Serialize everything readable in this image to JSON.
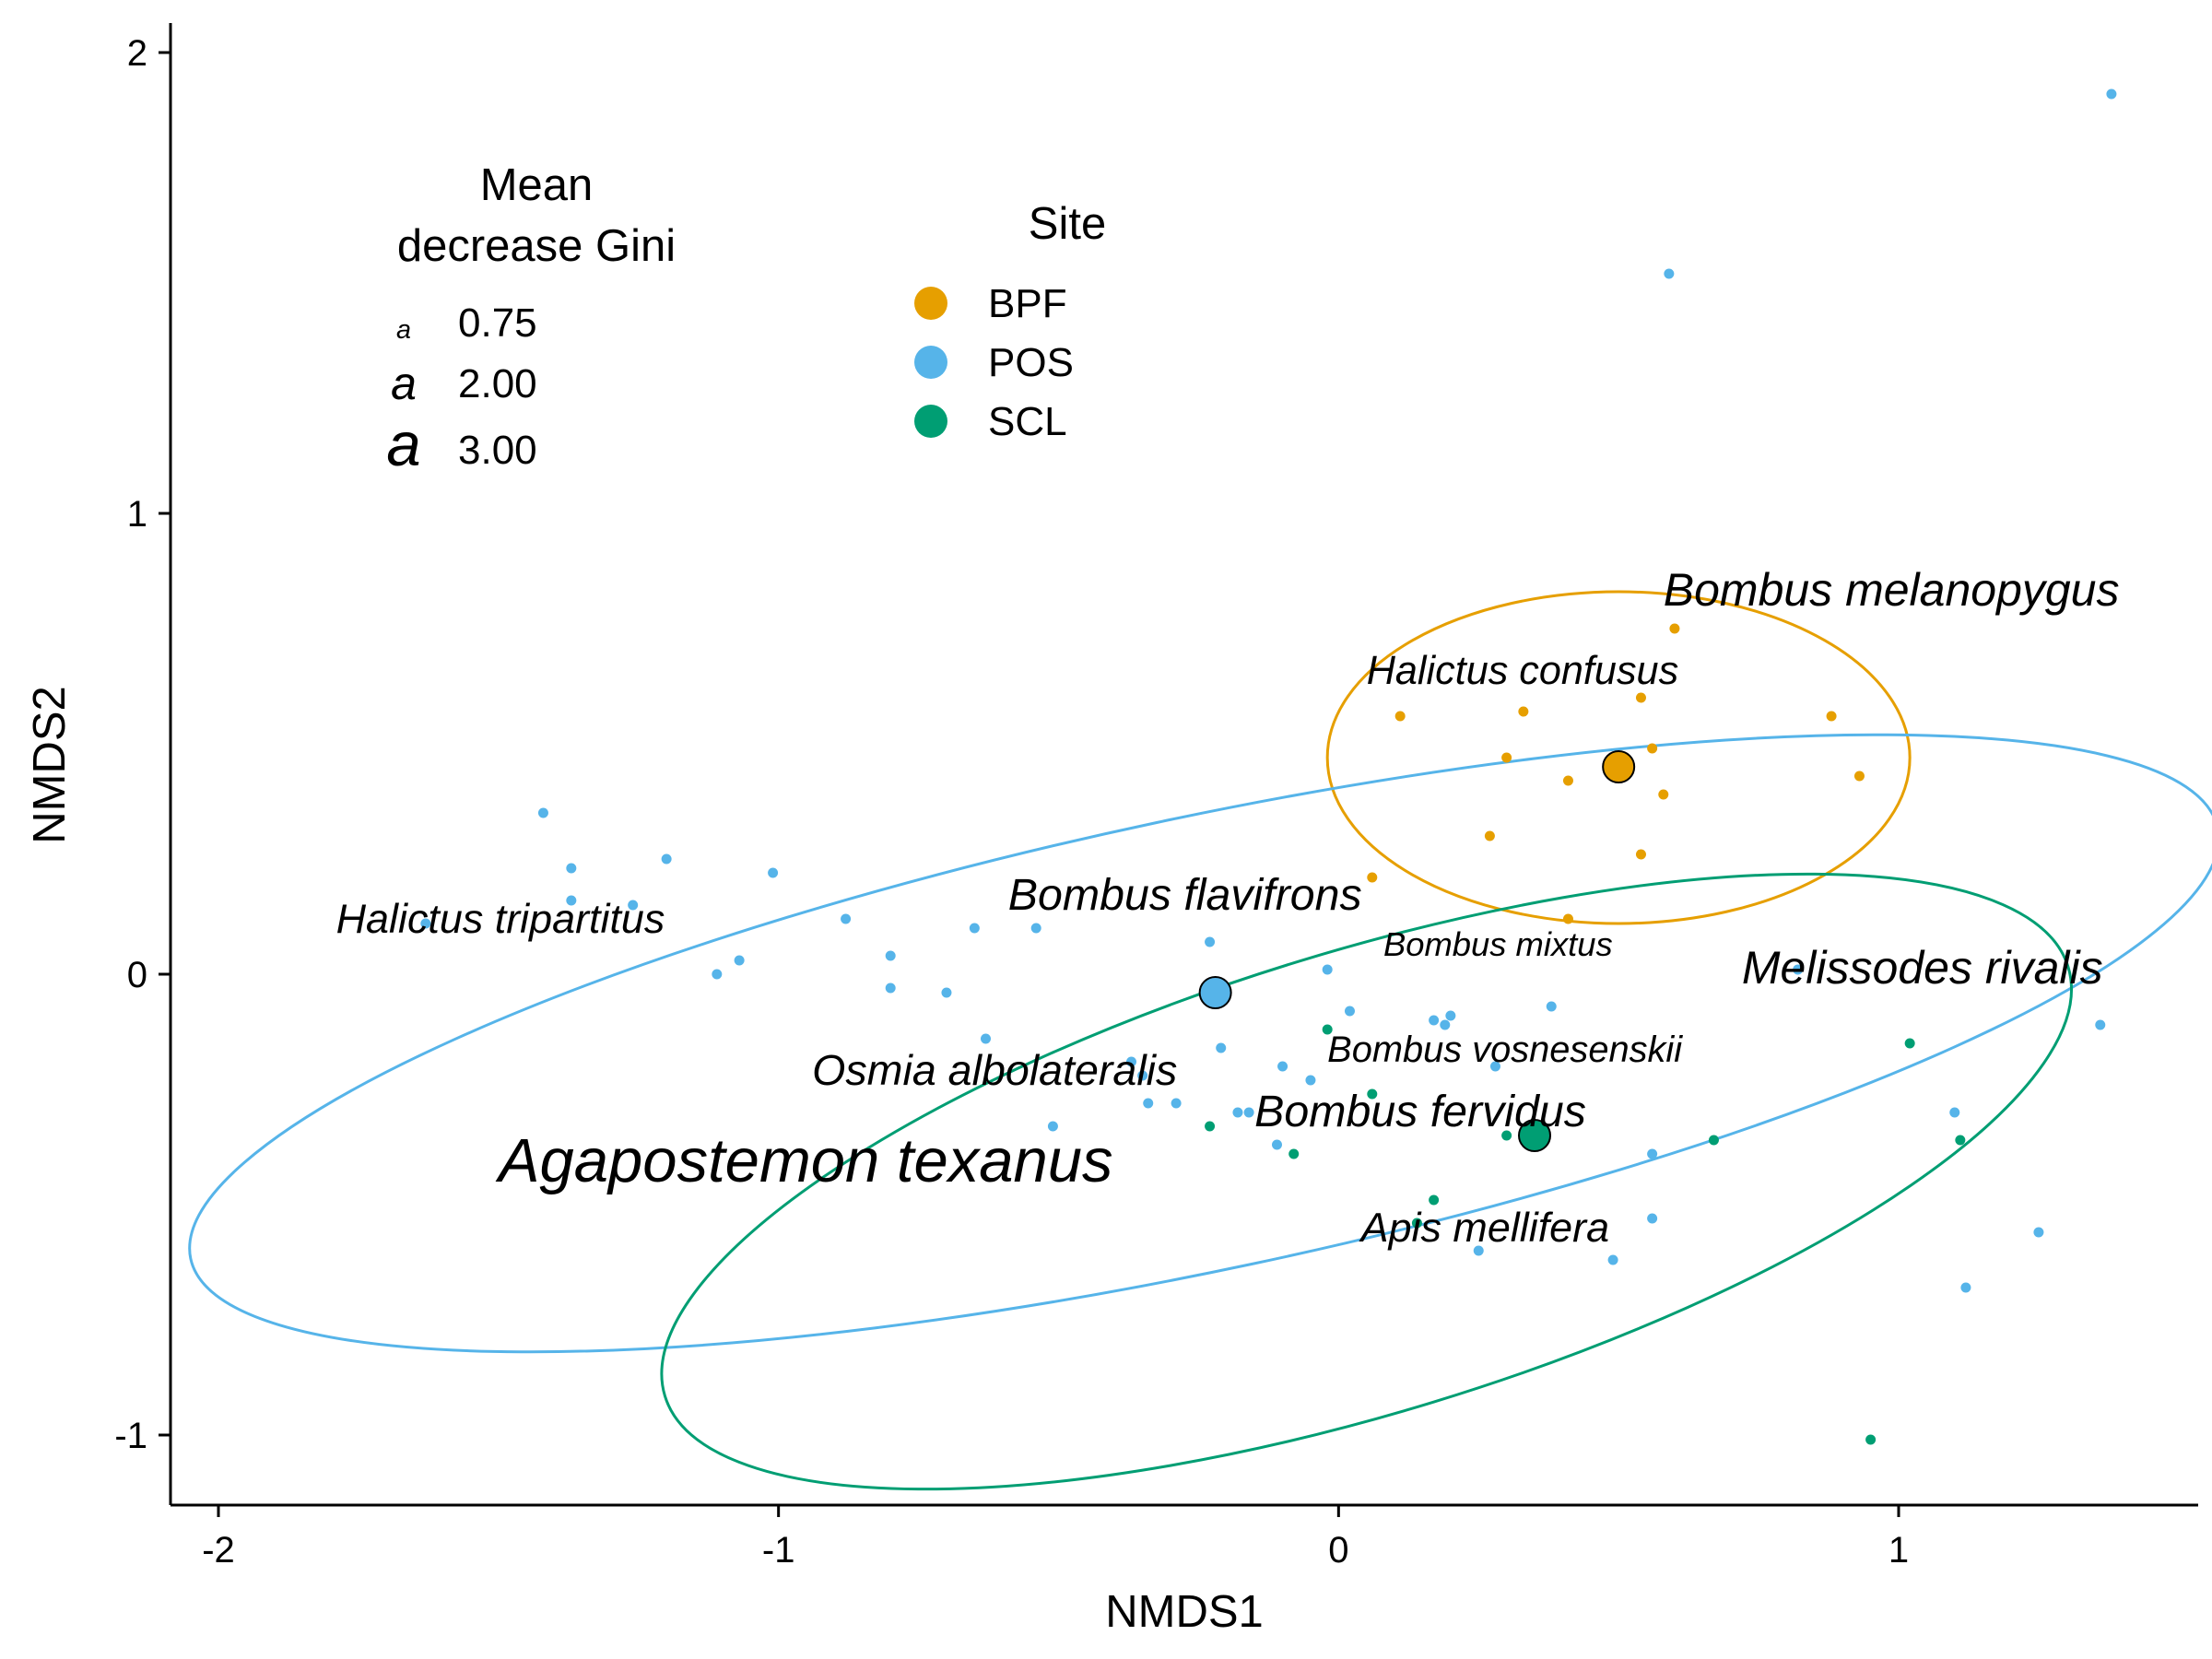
{
  "chart_data": {
    "type": "scatter",
    "title": "",
    "xlabel": "NMDS1",
    "ylabel": "NMDS2",
    "xlim": [
      -2.1,
      1.55
    ],
    "ylim": [
      -1.15,
      2.05
    ],
    "xticks": [
      -2,
      -1,
      0,
      1
    ],
    "xtick_labels": [
      "-2",
      "-1",
      "0",
      "1"
    ],
    "yticks": [
      -1,
      0,
      1,
      2
    ],
    "ytick_labels": [
      "-1",
      "0",
      "1",
      "2"
    ],
    "grid": false,
    "site_legend": {
      "title": "Site",
      "entries": [
        {
          "name": "BPF",
          "color": "#E69F00"
        },
        {
          "name": "POS",
          "color": "#56B4E9"
        },
        {
          "name": "SCL",
          "color": "#009E73"
        }
      ]
    },
    "size_legend": {
      "title_lines": [
        "Mean",
        "decrease Gini"
      ],
      "glyph": "a",
      "entries": [
        {
          "value": 0.75,
          "label": "0.75"
        },
        {
          "value": 2.0,
          "label": "2.00"
        },
        {
          "value": 3.0,
          "label": "3.00"
        }
      ]
    },
    "series": [
      {
        "name": "BPF",
        "color": "#E69F00",
        "centroid": [
          0.5,
          0.45
        ],
        "ellipse": {
          "cx": 0.5,
          "cy": 0.47,
          "rx": 0.52,
          "ry": 0.36,
          "angle_deg": 0
        },
        "points": [
          [
            0.11,
            0.56
          ],
          [
            0.33,
            0.57
          ],
          [
            0.54,
            0.6
          ],
          [
            0.6,
            0.75
          ],
          [
            0.3,
            0.47
          ],
          [
            0.41,
            0.42
          ],
          [
            0.56,
            0.49
          ],
          [
            0.58,
            0.39
          ],
          [
            0.88,
            0.56
          ],
          [
            0.93,
            0.43
          ],
          [
            0.27,
            0.3
          ],
          [
            0.54,
            0.26
          ],
          [
            0.41,
            0.12
          ],
          [
            0.06,
            0.21
          ]
        ]
      },
      {
        "name": "POS",
        "color": "#56B4E9",
        "centroid": [
          -0.22,
          -0.04
        ],
        "ellipse": {
          "cx": -0.24,
          "cy": -0.15,
          "rx": 1.85,
          "ry": 0.49,
          "angle_deg": -12
        },
        "points": [
          [
            1.38,
            1.91
          ],
          [
            0.59,
            1.52
          ],
          [
            -1.42,
            0.35
          ],
          [
            -1.37,
            0.23
          ],
          [
            -1.2,
            0.25
          ],
          [
            -1.37,
            0.16
          ],
          [
            -1.26,
            0.15
          ],
          [
            -1.01,
            0.22
          ],
          [
            -0.88,
            0.12
          ],
          [
            -0.8,
            0.04
          ],
          [
            -0.65,
            0.1
          ],
          [
            -0.54,
            0.1
          ],
          [
            -1.63,
            0.11
          ],
          [
            -1.11,
            0.0
          ],
          [
            -1.07,
            0.03
          ],
          [
            -0.8,
            -0.03
          ],
          [
            -0.7,
            -0.04
          ],
          [
            -0.23,
            0.07
          ],
          [
            -0.02,
            0.01
          ],
          [
            0.02,
            -0.08
          ],
          [
            0.17,
            -0.1
          ],
          [
            0.2,
            -0.09
          ],
          [
            0.19,
            -0.11
          ],
          [
            0.38,
            -0.07
          ],
          [
            0.82,
            0.01
          ],
          [
            -0.63,
            -0.14
          ],
          [
            -0.21,
            -0.16
          ],
          [
            -0.1,
            -0.2
          ],
          [
            -0.05,
            -0.23
          ],
          [
            0.28,
            -0.2
          ],
          [
            -0.37,
            -0.19
          ],
          [
            -0.34,
            -0.28
          ],
          [
            -0.29,
            -0.28
          ],
          [
            -0.16,
            -0.3
          ],
          [
            -0.51,
            -0.33
          ],
          [
            -0.11,
            -0.37
          ],
          [
            0.56,
            -0.39
          ],
          [
            0.56,
            -0.53
          ],
          [
            0.25,
            -0.6
          ],
          [
            0.49,
            -0.62
          ],
          [
            1.12,
            -0.68
          ],
          [
            1.25,
            -0.56
          ],
          [
            1.1,
            -0.3
          ],
          [
            1.36,
            -0.11
          ],
          [
            -0.35,
            -0.22
          ],
          [
            -0.18,
            -0.3
          ]
        ]
      },
      {
        "name": "SCL",
        "color": "#009E73",
        "centroid": [
          0.35,
          -0.35
        ],
        "ellipse": {
          "cx": 0.05,
          "cy": -0.45,
          "rx": 1.31,
          "ry": 0.5,
          "angle_deg": -17
        },
        "points": [
          [
            -0.02,
            -0.12
          ],
          [
            -0.23,
            -0.33
          ],
          [
            -0.08,
            -0.39
          ],
          [
            0.06,
            -0.26
          ],
          [
            0.3,
            -0.35
          ],
          [
            0.67,
            -0.36
          ],
          [
            1.02,
            -0.15
          ],
          [
            1.11,
            -0.36
          ],
          [
            0.95,
            -1.01
          ],
          [
            0.17,
            -0.49
          ],
          [
            0.14,
            -0.54
          ]
        ]
      }
    ],
    "species_labels": [
      {
        "text": "Bombus melanopygus",
        "x": 0.58,
        "y": 0.8,
        "gini": 2.0
      },
      {
        "text": "Halictus confusus",
        "x": 0.05,
        "y": 0.63,
        "gini": 1.6
      },
      {
        "text": "Halictus tripartitus",
        "x": -1.79,
        "y": 0.09,
        "gini": 1.7
      },
      {
        "text": "Bombus flavifrons",
        "x": -0.59,
        "y": 0.14,
        "gini": 1.9
      },
      {
        "text": "Bombus mixtus",
        "x": 0.08,
        "y": 0.04,
        "gini": 1.2
      },
      {
        "text": "Melissodes rivalis",
        "x": 0.72,
        "y": -0.02,
        "gini": 2.0
      },
      {
        "text": "Bombus vosnesenskii",
        "x": -0.02,
        "y": -0.19,
        "gini": 1.4
      },
      {
        "text": "Osmia albolateralis",
        "x": -0.94,
        "y": -0.24,
        "gini": 1.8
      },
      {
        "text": "Bombus fervidus",
        "x": -0.15,
        "y": -0.33,
        "gini": 1.9
      },
      {
        "text": "Agapostemon texanus",
        "x": -1.5,
        "y": -0.45,
        "gini": 3.0
      },
      {
        "text": "Apis mellifera",
        "x": 0.04,
        "y": -0.58,
        "gini": 1.7
      }
    ]
  }
}
